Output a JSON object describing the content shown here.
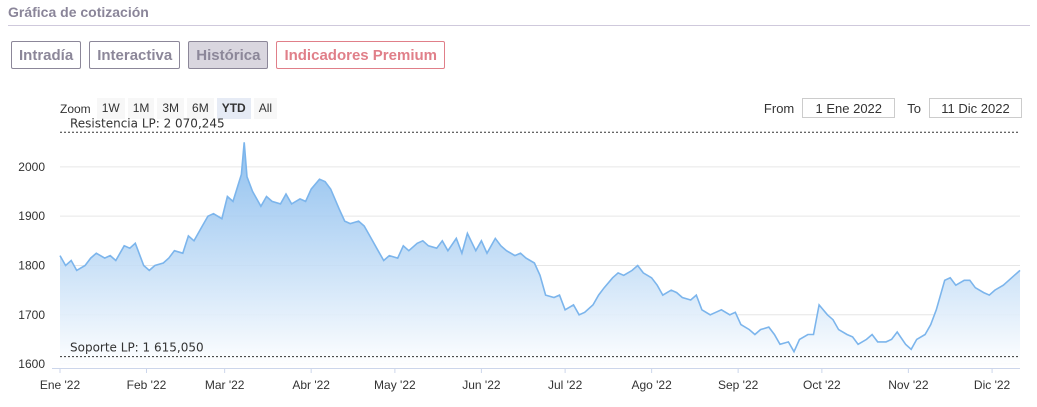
{
  "header": {
    "title": "Gráfica de cotización"
  },
  "tabs": [
    {
      "label": "Intradía",
      "active": false
    },
    {
      "label": "Interactiva",
      "active": false
    },
    {
      "label": "Histórica",
      "active": true
    }
  ],
  "premium_tab": {
    "label": "Indicadores Premium"
  },
  "zoom": {
    "label": "Zoom",
    "buttons": [
      {
        "label": "1W",
        "active": false
      },
      {
        "label": "1M",
        "active": false
      },
      {
        "label": "3M",
        "active": false
      },
      {
        "label": "6M",
        "active": false
      },
      {
        "label": "YTD",
        "active": true
      },
      {
        "label": "All",
        "active": false
      }
    ]
  },
  "range": {
    "from_label": "From",
    "from_value": "1 Ene 2022",
    "to_label": "To",
    "to_value": "11 Dic 2022"
  },
  "colors": {
    "line": "#7cb5ec",
    "fill_top": "#7cb5ec",
    "fill_bottom": "#ffffff",
    "grid": "#e6e6e6",
    "text": "#333333",
    "title": "#8a8599",
    "premium": "#e07f89"
  },
  "chart_data": {
    "type": "area",
    "title": "",
    "xlabel": "",
    "ylabel": "",
    "ylim": [
      1592,
      2085
    ],
    "xlim": [
      "2022-01-01",
      "2022-12-11"
    ],
    "y_ticks": [
      1600,
      1700,
      1800,
      1900,
      2000
    ],
    "x_ticks": [
      {
        "date": "2022-01-01",
        "label": "Ene '22"
      },
      {
        "date": "2022-02-01",
        "label": "Feb '22"
      },
      {
        "date": "2022-03-01",
        "label": "Mar '22"
      },
      {
        "date": "2022-04-01",
        "label": "Abr '22"
      },
      {
        "date": "2022-05-01",
        "label": "May '22"
      },
      {
        "date": "2022-06-01",
        "label": "Jun '22"
      },
      {
        "date": "2022-07-01",
        "label": "Jul '22"
      },
      {
        "date": "2022-08-01",
        "label": "Ago '22"
      },
      {
        "date": "2022-09-01",
        "label": "Sep '22"
      },
      {
        "date": "2022-10-01",
        "label": "Oct '22"
      },
      {
        "date": "2022-11-01",
        "label": "Nov '22"
      },
      {
        "date": "2022-12-01",
        "label": "Dic '22"
      }
    ],
    "grid": true,
    "legend": "none",
    "plot_lines": [
      {
        "value": 2070.245,
        "label": "Resistencia LP: 2 070,245"
      },
      {
        "value": 1615.05,
        "label": "Soporte LP: 1 615,050"
      }
    ],
    "series": [
      {
        "x": [
          "2022-01-01",
          "2022-01-03",
          "2022-01-05",
          "2022-01-07",
          "2022-01-10",
          "2022-01-12",
          "2022-01-14",
          "2022-01-17",
          "2022-01-19",
          "2022-01-21",
          "2022-01-24",
          "2022-01-26",
          "2022-01-28",
          "2022-01-31",
          "2022-02-02",
          "2022-02-04",
          "2022-02-07",
          "2022-02-09",
          "2022-02-11",
          "2022-02-14",
          "2022-02-16",
          "2022-02-18",
          "2022-02-21",
          "2022-02-23",
          "2022-02-25",
          "2022-02-28",
          "2022-03-02",
          "2022-03-04",
          "2022-03-07",
          "2022-03-08",
          "2022-03-09",
          "2022-03-11",
          "2022-03-14",
          "2022-03-16",
          "2022-03-18",
          "2022-03-21",
          "2022-03-23",
          "2022-03-25",
          "2022-03-28",
          "2022-03-30",
          "2022-04-01",
          "2022-04-04",
          "2022-04-06",
          "2022-04-08",
          "2022-04-11",
          "2022-04-13",
          "2022-04-15",
          "2022-04-18",
          "2022-04-20",
          "2022-04-22",
          "2022-04-25",
          "2022-04-27",
          "2022-04-29",
          "2022-05-02",
          "2022-05-04",
          "2022-05-06",
          "2022-05-09",
          "2022-05-11",
          "2022-05-13",
          "2022-05-16",
          "2022-05-18",
          "2022-05-20",
          "2022-05-23",
          "2022-05-25",
          "2022-05-27",
          "2022-05-30",
          "2022-06-01",
          "2022-06-03",
          "2022-06-06",
          "2022-06-08",
          "2022-06-10",
          "2022-06-13",
          "2022-06-15",
          "2022-06-17",
          "2022-06-20",
          "2022-06-22",
          "2022-06-24",
          "2022-06-27",
          "2022-06-29",
          "2022-07-01",
          "2022-07-04",
          "2022-07-06",
          "2022-07-08",
          "2022-07-11",
          "2022-07-13",
          "2022-07-15",
          "2022-07-18",
          "2022-07-20",
          "2022-07-22",
          "2022-07-25",
          "2022-07-27",
          "2022-07-29",
          "2022-08-01",
          "2022-08-03",
          "2022-08-05",
          "2022-08-08",
          "2022-08-10",
          "2022-08-12",
          "2022-08-15",
          "2022-08-17",
          "2022-08-19",
          "2022-08-22",
          "2022-08-24",
          "2022-08-26",
          "2022-08-29",
          "2022-08-31",
          "2022-09-02",
          "2022-09-05",
          "2022-09-07",
          "2022-09-09",
          "2022-09-12",
          "2022-09-14",
          "2022-09-16",
          "2022-09-19",
          "2022-09-21",
          "2022-09-23",
          "2022-09-26",
          "2022-09-28",
          "2022-09-30",
          "2022-10-03",
          "2022-10-05",
          "2022-10-07",
          "2022-10-10",
          "2022-10-12",
          "2022-10-14",
          "2022-10-17",
          "2022-10-19",
          "2022-10-21",
          "2022-10-24",
          "2022-10-26",
          "2022-10-28",
          "2022-10-31",
          "2022-11-02",
          "2022-11-04",
          "2022-11-07",
          "2022-11-09",
          "2022-11-11",
          "2022-11-14",
          "2022-11-16",
          "2022-11-18",
          "2022-11-21",
          "2022-11-23",
          "2022-11-25",
          "2022-11-28",
          "2022-11-30",
          "2022-12-02",
          "2022-12-05",
          "2022-12-07",
          "2022-12-09",
          "2022-12-11"
        ],
        "y": [
          1820,
          1800,
          1810,
          1790,
          1800,
          1815,
          1825,
          1815,
          1820,
          1810,
          1840,
          1835,
          1845,
          1800,
          1790,
          1800,
          1805,
          1815,
          1830,
          1825,
          1860,
          1850,
          1880,
          1900,
          1905,
          1895,
          1940,
          1930,
          1985,
          2050,
          1980,
          1950,
          1920,
          1940,
          1930,
          1925,
          1945,
          1925,
          1935,
          1930,
          1955,
          1975,
          1970,
          1955,
          1915,
          1890,
          1885,
          1890,
          1880,
          1860,
          1830,
          1810,
          1820,
          1815,
          1840,
          1830,
          1845,
          1850,
          1840,
          1835,
          1850,
          1830,
          1855,
          1825,
          1865,
          1830,
          1850,
          1825,
          1855,
          1840,
          1830,
          1820,
          1825,
          1815,
          1805,
          1780,
          1740,
          1735,
          1740,
          1710,
          1720,
          1700,
          1705,
          1720,
          1740,
          1755,
          1775,
          1785,
          1780,
          1790,
          1800,
          1785,
          1775,
          1760,
          1740,
          1750,
          1745,
          1735,
          1730,
          1740,
          1710,
          1700,
          1705,
          1710,
          1700,
          1705,
          1680,
          1670,
          1660,
          1670,
          1675,
          1660,
          1640,
          1645,
          1625,
          1650,
          1660,
          1660,
          1720,
          1700,
          1690,
          1670,
          1660,
          1655,
          1640,
          1650,
          1660,
          1645,
          1645,
          1650,
          1665,
          1640,
          1630,
          1650,
          1660,
          1680,
          1710,
          1770,
          1775,
          1760,
          1770,
          1770,
          1755,
          1745,
          1740,
          1750,
          1760,
          1770,
          1780,
          1790
        ]
      }
    ]
  }
}
